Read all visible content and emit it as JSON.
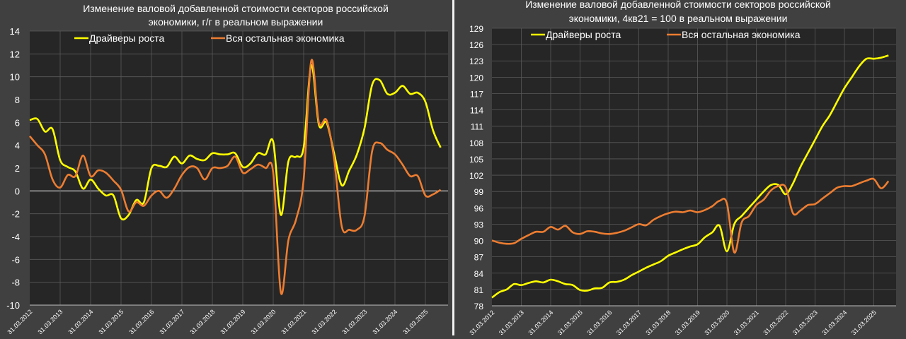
{
  "chart_data": [
    {
      "type": "line",
      "title": [
        "Изменение валовой добавленной стоимости секторов российской",
        "экономики, г/г в реальном выражении"
      ],
      "xlabel": "",
      "ylabel": "",
      "x_tick_labels": [
        "31.03.2012",
        "31.03.2013",
        "31.03.2014",
        "31.03.2015",
        "31.03.2016",
        "31.03.2017",
        "31.03.2018",
        "31.03.2019",
        "31.03.2020",
        "31.03.2021",
        "31.03.2022",
        "31.03.2023",
        "31.03.2024",
        "31.03.2025"
      ],
      "x_frequency": "quarterly",
      "x_start": "31.03.2012",
      "ylim": [
        -10,
        14
      ],
      "y_step": 2,
      "grid": true,
      "legend_position": "top",
      "series": [
        {
          "name": "Драйверы роста",
          "color": "#ffff00",
          "values": [
            6.2,
            6.3,
            5.2,
            5.4,
            2.7,
            2.1,
            1.7,
            0.2,
            1.0,
            0.2,
            -0.4,
            -0.4,
            -2.4,
            -2.1,
            -0.8,
            -1.0,
            2.0,
            2.2,
            2.1,
            3.0,
            2.4,
            3.1,
            2.8,
            2.7,
            3.3,
            3.2,
            3.2,
            3.3,
            2.1,
            2.4,
            3.3,
            3.2,
            4.3,
            -2.1,
            2.6,
            3.0,
            3.8,
            11.0,
            5.8,
            6.0,
            3.3,
            0.5,
            1.8,
            3.2,
            5.5,
            9.3,
            9.7,
            8.5,
            8.6,
            9.2,
            8.5,
            8.6,
            7.8,
            5.3,
            3.8
          ]
        },
        {
          "name": "Вся остальная экономика",
          "color": "#ed7d31",
          "values": [
            4.8,
            4.0,
            3.2,
            1.0,
            0.3,
            1.4,
            1.3,
            3.1,
            1.3,
            1.8,
            1.6,
            0.9,
            0.1,
            -1.8,
            -1.0,
            -1.3,
            -0.4,
            0.0,
            -0.6,
            0.2,
            1.4,
            2.1,
            2.0,
            1.0,
            2.0,
            2.0,
            2.2,
            3.0,
            1.6,
            1.9,
            2.3,
            2.0,
            1.6,
            -8.9,
            -4.3,
            -2.5,
            1.0,
            11.4,
            6.0,
            6.2,
            2.8,
            -3.1,
            -3.4,
            -3.4,
            -2.2,
            3.5,
            4.2,
            3.6,
            3.2,
            2.3,
            1.3,
            1.3,
            -0.4,
            -0.3,
            0.1
          ]
        }
      ]
    },
    {
      "type": "line",
      "title": [
        "Изменение валовой добавленной стоимости секторов российской",
        "экономики, 4кв21 = 100 в реальном выражении"
      ],
      "xlabel": "",
      "ylabel": "",
      "x_tick_labels": [
        "31.03.2012",
        "31.03.2013",
        "31.03.2014",
        "31.03.2015",
        "31.03.2016",
        "31.03.2017",
        "31.03.2018",
        "31.03.2019",
        "31.03.2020",
        "31.03.2021",
        "31.03.2022",
        "31.03.2023",
        "31.03.2024",
        "31.03.2025"
      ],
      "x_frequency": "quarterly",
      "x_start": "31.03.2012",
      "ylim": [
        78,
        129
      ],
      "y_step": 3,
      "grid": true,
      "legend_position": "top",
      "series": [
        {
          "name": "Драйверы роста",
          "color": "#ffff00",
          "values": [
            79.5,
            80.5,
            81,
            82,
            81.8,
            82.2,
            82.5,
            82.3,
            82.8,
            82.5,
            82,
            81.8,
            80.9,
            80.8,
            81.2,
            81.3,
            82.3,
            82.4,
            82.8,
            83.6,
            84.3,
            85,
            85.6,
            86.2,
            87.2,
            87.8,
            88.4,
            88.9,
            89.3,
            90.6,
            91.5,
            92.7,
            88,
            93,
            94.5,
            96,
            97.5,
            99,
            100.2,
            100.2,
            98.5,
            100.5,
            103.5,
            106,
            108.5,
            111,
            113,
            115.5,
            118,
            120,
            122,
            123.4,
            123.4,
            123.6,
            124
          ]
        },
        {
          "name": "Вся остальная экономика",
          "color": "#ed7d31",
          "values": [
            90,
            89.6,
            89.4,
            89.5,
            90.3,
            91,
            91.6,
            91.6,
            92.5,
            92,
            92.7,
            91.5,
            91.2,
            91.7,
            91.6,
            91.3,
            91.2,
            91.4,
            91.8,
            92.4,
            93,
            92.8,
            93.8,
            94.5,
            95,
            95.3,
            95.2,
            95.5,
            95.2,
            95.6,
            96.3,
            97.3,
            96.8,
            87.8,
            93.3,
            94.5,
            96.5,
            97.5,
            99.2,
            100,
            99.8,
            95,
            95.5,
            96.5,
            96.7,
            97.7,
            98.7,
            99.7,
            100,
            100,
            100.5,
            101,
            101.3,
            99.6,
            100.9
          ]
        }
      ]
    }
  ]
}
